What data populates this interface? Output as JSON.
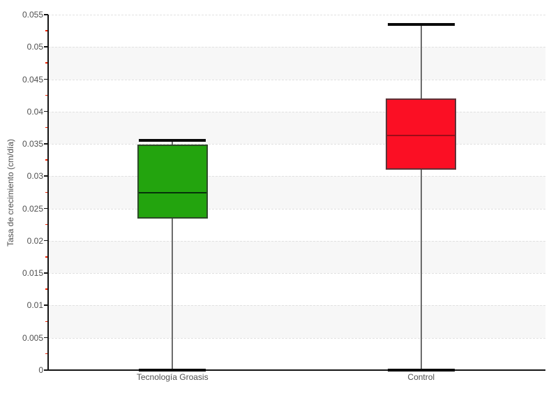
{
  "chart_data": {
    "type": "boxplot",
    "ylabel": "Tasa de crecimiento (cm/día)",
    "xlabel": "",
    "ylim": [
      0,
      0.055
    ],
    "ytick_step": 0.005,
    "yminor_tick_step": 0.0025,
    "ytick_labels": [
      "0",
      "0.005",
      "0.01",
      "0.015",
      "0.02",
      "0.025",
      "0.03",
      "0.035",
      "0.04",
      "0.045",
      "0.05",
      "0.055"
    ],
    "grid": {
      "horizontal_dashed": true,
      "alternating_bands": true,
      "legend": "none"
    },
    "categories": [
      "Tecnología Groasis",
      "Control"
    ],
    "series": [
      {
        "name": "Tecnología Groasis",
        "low": 0,
        "q1": 0.0235,
        "median": 0.0274,
        "q3": 0.0349,
        "high": 0.0355,
        "fill": "#23a40e",
        "stroke": "#2d4b28",
        "median_color": "#05320a"
      },
      {
        "name": "Control",
        "low": 0,
        "q1": 0.031,
        "median": 0.0363,
        "q3": 0.042,
        "high": 0.0535,
        "fill": "#fb0f24",
        "stroke": "#5f3338",
        "median_color": "#9e0c18"
      }
    ],
    "colors": {
      "background": "#ffffff",
      "band": "#f7f7f7",
      "grid": "#e1e1e1",
      "axis": "#141414",
      "major_tick": "#141414",
      "minor_tick": "#ee2200",
      "text": "#4f4f4f",
      "whisker": "#6b6b6b",
      "cap": "#0a0a0a"
    }
  }
}
